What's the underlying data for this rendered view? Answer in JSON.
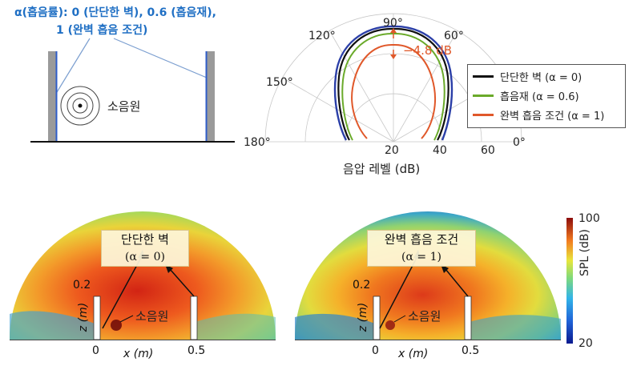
{
  "top_left": {
    "caption_line1": "α(흡음률): 0 (단단한 벽), 0.6 (흡음재),",
    "caption_line2": "1 (완벽 흡음 조건)",
    "source_label": "소음원"
  },
  "polar": {
    "angle_labels": [
      "90°",
      "120°",
      "60°",
      "150°",
      "180°",
      "0°"
    ],
    "radial_labels": [
      "20",
      "40",
      "60"
    ],
    "axis_label": "음압 레벨 (dB)",
    "annotation": "−4.8 dB",
    "legend": [
      {
        "label": "단단한 벽 (α = 0)",
        "color": "#111111"
      },
      {
        "label": "흡음재 (α = 0.6)",
        "color": "#6aaa2a"
      },
      {
        "label": "완벽 흡음 조건 (α = 1)",
        "color": "#e0582a"
      }
    ],
    "extra_curve_colors": [
      "#2b3fa8"
    ]
  },
  "maps": {
    "left": {
      "title": "단단한 벽",
      "subtitle": "(α = 0)",
      "source": "소음원",
      "z_tick": "0.2",
      "x_tick0": "0",
      "x_tick1": "0.5",
      "z_label": "z (m)",
      "x_label": "x (m)"
    },
    "right": {
      "title": "완벽 흡음 조건",
      "subtitle": "(α = 1)",
      "source": "소음원",
      "z_tick": "0.2",
      "x_tick0": "0",
      "x_tick1": "0.5",
      "z_label": "z (m)",
      "x_label": "x (m)"
    }
  },
  "colorbar": {
    "max": "100",
    "min": "20",
    "label": "SPL (dB)"
  }
}
